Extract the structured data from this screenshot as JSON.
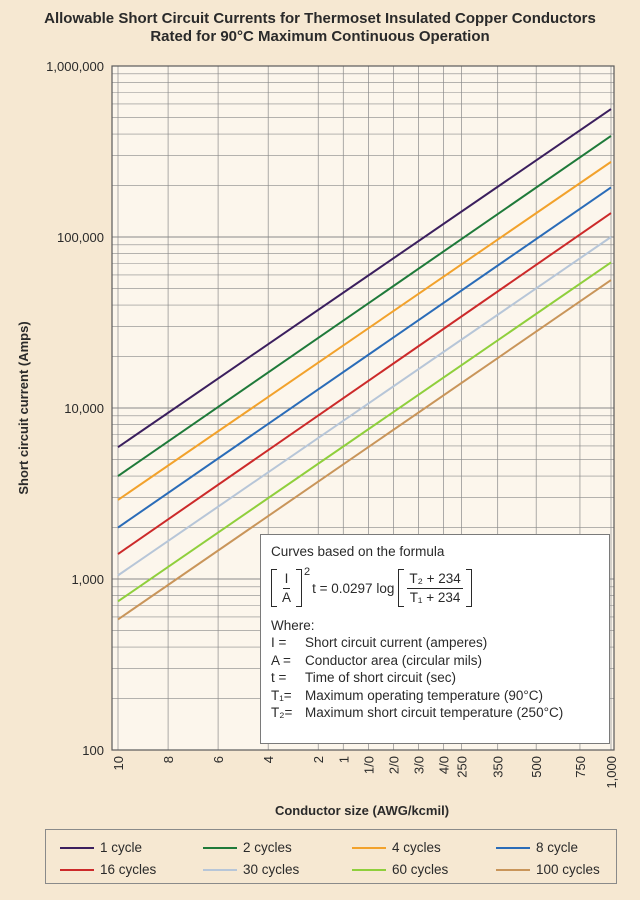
{
  "chart_data": {
    "type": "line",
    "title_line1": "Allowable Short Circuit Currents for Thermoset Insulated Copper Conductors",
    "title_line2": "Rated for 90°C Maximum Continuous Operation",
    "xlabel": "Conductor size (AWG/kcmil)",
    "ylabel": "Short circuit current (Amps)",
    "yscale": "log",
    "ylim": [
      100,
      1000000
    ],
    "y_ticks": [
      "100",
      "1,000",
      "10,000",
      "100,000",
      "1,000,000"
    ],
    "x_ticks": [
      {
        "label": "10",
        "cmil": 10380
      },
      {
        "label": "8",
        "cmil": 16510
      },
      {
        "label": "6",
        "cmil": 26240
      },
      {
        "label": "4",
        "cmil": 41740
      },
      {
        "label": "2",
        "cmil": 66360
      },
      {
        "label": "1",
        "cmil": 83690
      },
      {
        "label": "1/0",
        "cmil": 105600
      },
      {
        "label": "2/0",
        "cmil": 133100
      },
      {
        "label": "3/0",
        "cmil": 167800
      },
      {
        "label": "4/0",
        "cmil": 211600
      },
      {
        "label": "250",
        "cmil": 250000
      },
      {
        "label": "350",
        "cmil": 350000
      },
      {
        "label": "500",
        "cmil": 500000
      },
      {
        "label": "750",
        "cmil": 750000
      },
      {
        "label": "1,000",
        "cmil": 1000000
      }
    ],
    "series": [
      {
        "name": "1 cycle",
        "color": "#3b1f5e",
        "x": [
          "10",
          "1,000"
        ],
        "values": [
          5900,
          560000
        ]
      },
      {
        "name": "2 cycles",
        "color": "#1f7a3a",
        "x": [
          "10",
          "1,000"
        ],
        "values": [
          4000,
          390000
        ]
      },
      {
        "name": "4 cycles",
        "color": "#f2a22c",
        "x": [
          "10",
          "1,000"
        ],
        "values": [
          2900,
          275000
        ]
      },
      {
        "name": "8 cycle",
        "color": "#2a6cb8",
        "x": [
          "10",
          "1,000"
        ],
        "values": [
          2000,
          195000
        ]
      },
      {
        "name": "16 cycles",
        "color": "#cc2a2a",
        "x": [
          "10",
          "1,000"
        ],
        "values": [
          1400,
          138000
        ]
      },
      {
        "name": "30 cycles",
        "color": "#b7c6d8",
        "x": [
          "10",
          "1,000"
        ],
        "values": [
          1050,
          100000
        ]
      },
      {
        "name": "60 cycles",
        "color": "#8fcf3c",
        "x": [
          "10",
          "1,000"
        ],
        "values": [
          740,
          71000
        ]
      },
      {
        "name": "100 cycles",
        "color": "#c9955a",
        "x": [
          "10",
          "1,000"
        ],
        "values": [
          580,
          56000
        ]
      }
    ]
  },
  "formula_box": {
    "heading": "Curves based on the formula",
    "lhs_num": "I",
    "lhs_den": "A",
    "exponent": "2",
    "rhs": "t = 0.0297 log",
    "rhs_num": "T₂ + 234",
    "rhs_den": "T₁ + 234",
    "where": "Where:",
    "definitions": [
      {
        "sym": "I =",
        "text": "Short circuit current (amperes)"
      },
      {
        "sym": "A =",
        "text": "Conductor area (circular mils)"
      },
      {
        "sym": "t =",
        "text": "Time of short circuit (sec)"
      },
      {
        "sym": "T₁=",
        "text": "Maximum operating temperature (90°C)"
      },
      {
        "sym": "T₂=",
        "text": "Maximum short circuit temperature (250°C)"
      }
    ]
  },
  "colors": {
    "background": "#f6e8d2",
    "plot_area": "#fcf6ec",
    "grid": "#8a8a8a"
  }
}
